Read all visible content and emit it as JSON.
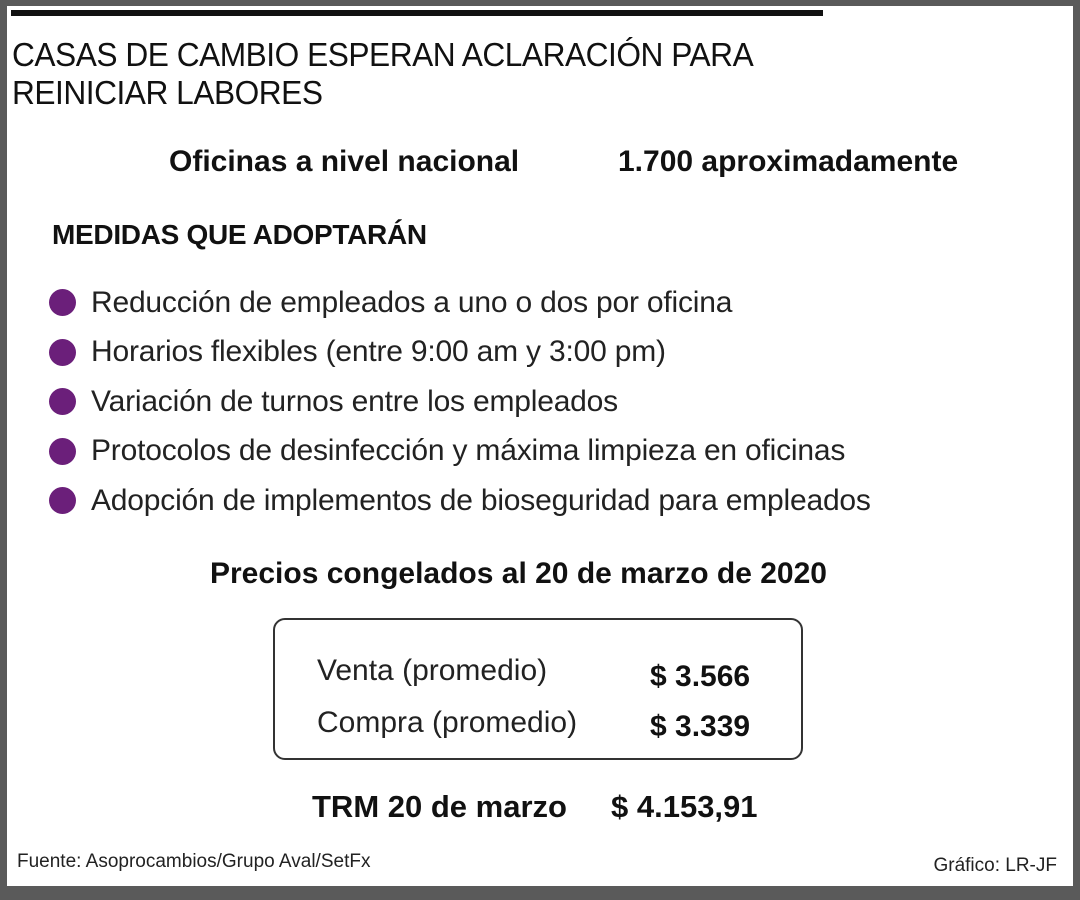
{
  "headline": "CASAS DE CAMBIO ESPERAN ACLARACIÓN PARA REINICIAR LABORES",
  "offices": {
    "label": "Oficinas a nivel nacional",
    "value": "1.700 aproximadamente"
  },
  "measures": {
    "title": "MEDIDAS QUE ADOPTARÁN",
    "bullet_color": "#6b1f7a",
    "items": [
      "Reducción de empleados a uno o dos por oficina",
      "Horarios flexibles (entre 9:00 am y 3:00 pm)",
      "Variación de turnos entre los empleados",
      "Protocolos de desinfección y máxima limpieza en oficinas",
      "Adopción de implementos de bioseguridad para empleados"
    ]
  },
  "prices": {
    "heading": "Precios congelados al 20 de marzo de 2020",
    "rows": [
      {
        "label": "Venta (promedio)",
        "value": "$ 3.566"
      },
      {
        "label": "Compra (promedio)",
        "value": "$ 3.339"
      }
    ]
  },
  "trm": {
    "label": "TRM 20 de marzo",
    "value": "$ 4.153,91"
  },
  "footer": {
    "source": "Fuente:  Asoprocambios/Grupo Aval/SetFx",
    "credit": "Gráfico: LR-JF"
  }
}
